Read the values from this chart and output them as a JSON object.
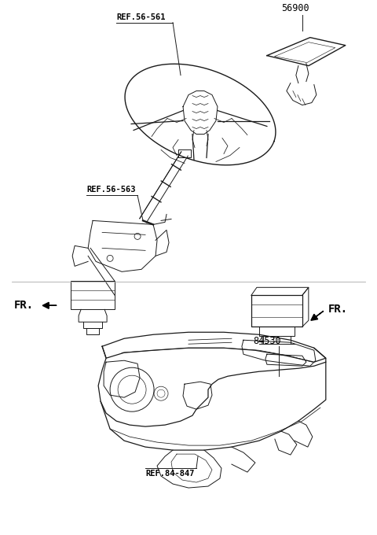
{
  "bg_color": "#ffffff",
  "line_color": "#1a1a1a",
  "label_color": "#000000",
  "labels": {
    "ref_56_561": "REF.56-561",
    "ref_56_563": "REF.56-563",
    "ref_84_847": "REF.84-847",
    "part_56900": "56900",
    "part_84530": "84530",
    "fr_left": "FR.",
    "fr_right": "FR."
  },
  "font_size_label": 7.5,
  "font_size_part": 8.5,
  "font_size_fr": 10
}
